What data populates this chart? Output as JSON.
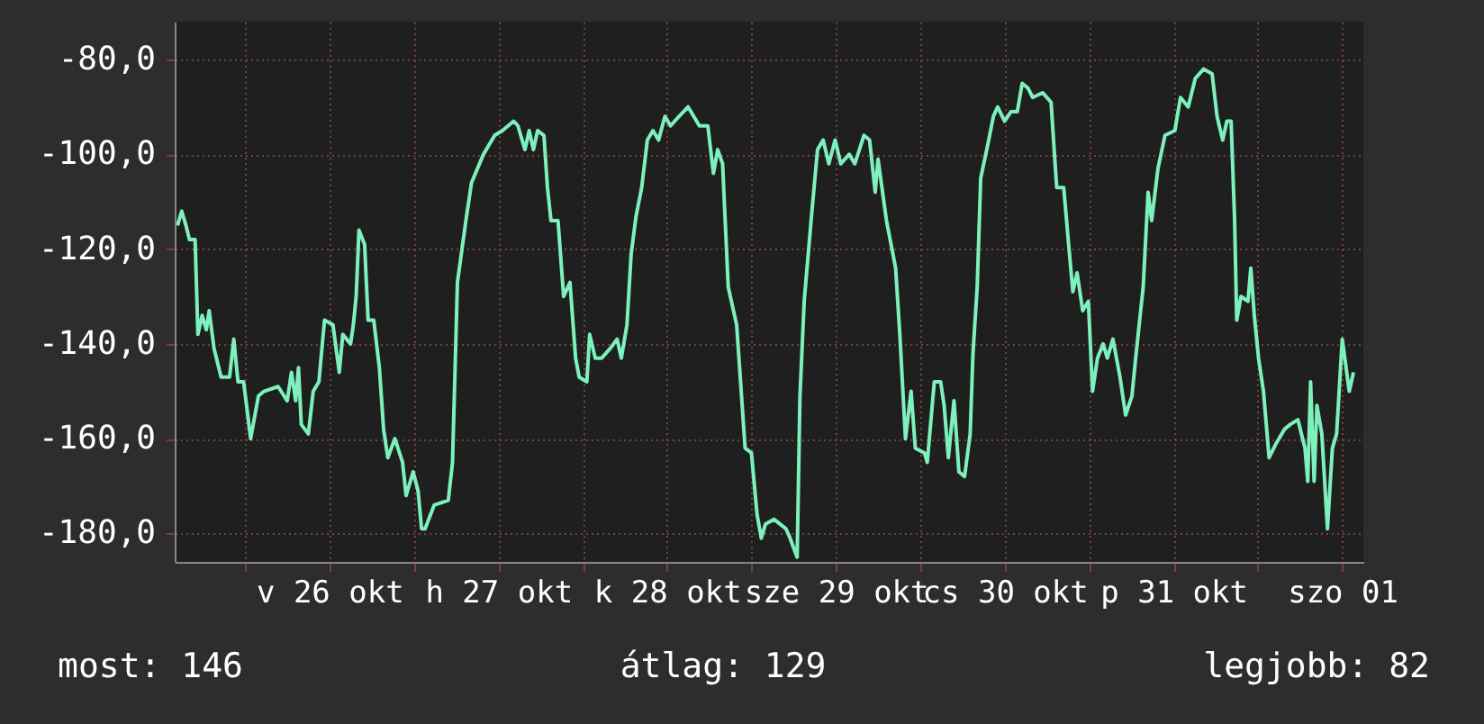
{
  "chart_data": {
    "type": "line",
    "x": [
      "--10-25T14:24",
      "--10-25T15:00",
      "--10-25T15:36",
      "--10-25T16:06",
      "--10-25T16:54",
      "--10-25T17:18",
      "--10-25T17:54",
      "--10-25T18:30",
      "--10-25T18:54",
      "--10-25T19:36",
      "--10-25T20:36",
      "--10-25T21:48",
      "--10-25T22:24",
      "--10-25T23:00",
      "--10-25T23:48",
      "--10-26T00:48",
      "--10-26T01:54",
      "--10-26T02:42",
      "--10-26T04:42",
      "--10-26T06:00",
      "--10-26T06:36",
      "--10-26T07:12",
      "--10-26T07:36",
      "--10-26T08:00",
      "--10-26T09:00",
      "--10-26T09:42",
      "--10-26T10:30",
      "--10-26T11:18",
      "--10-26T12:30",
      "--10-26T13:24",
      "--10-26T13:54",
      "--10-26T15:00",
      "--10-26T15:24",
      "--10-26T15:48",
      "--10-26T16:12",
      "--10-26T17:00",
      "--10-26T17:30",
      "--10-26T18:18",
      "--10-26T19:06",
      "--10-26T19:42",
      "--10-26T20:18",
      "--10-26T21:18",
      "--10-26T22:24",
      "--10-26T22:54",
      "--10-26T23:54",
      "--10-27T00:36",
      "--10-27T01:06",
      "--10-27T01:36",
      "--10-27T02:54",
      "--10-27T04:54",
      "--10-27T05:30",
      "--10-27T06:12",
      "--10-27T07:24",
      "--10-27T08:12",
      "--10-27T09:54",
      "--10-27T11:30",
      "--10-27T12:36",
      "--10-27T14:12",
      "--10-27T14:48",
      "--10-27T15:48",
      "--10-27T16:24",
      "--10-27T17:00",
      "--10-27T17:36",
      "--10-27T18:30",
      "--10-27T19:00",
      "--10-27T19:30",
      "--10-27T20:30",
      "--10-27T21:18",
      "--10-27T22:12",
      "--10-27T23:00",
      "--10-27T23:30",
      "--10-28T00:36",
      "--10-28T01:00",
      "--10-28T01:48",
      "--10-28T02:42",
      "--10-28T03:54",
      "--10-28T04:54",
      "--10-28T05:30",
      "--10-28T06:18",
      "--10-28T06:54",
      "--10-28T07:36",
      "--10-28T08:24",
      "--10-28T09:12",
      "--10-28T10:00",
      "--10-28T10:48",
      "--10-28T11:42",
      "--10-28T12:30",
      "--10-28T13:42",
      "--10-28T15:00",
      "--10-28T16:36",
      "--10-28T17:48",
      "--10-28T18:36",
      "--10-28T19:12",
      "--10-28T19:54",
      "--10-28T20:42",
      "--10-28T21:54",
      "--10-28T23:06",
      "--10-29T00:00",
      "--10-29T00:48",
      "--10-29T01:24",
      "--10-29T02:00",
      "--10-29T03:12",
      "--10-29T04:54",
      "--10-29T05:30",
      "--10-29T06:30",
      "--10-29T06:54",
      "--10-29T07:30",
      "--10-29T08:36",
      "--10-29T09:24",
      "--10-29T10:12",
      "--10-29T11:00",
      "--10-29T11:54",
      "--10-29T12:42",
      "--10-29T13:54",
      "--10-29T14:42",
      "--10-29T16:00",
      "--10-29T16:48",
      "--10-29T17:36",
      "--10-29T18:00",
      "--10-29T19:12",
      "--10-29T20:30",
      "--10-29T21:06",
      "--10-29T21:54",
      "--10-29T22:42",
      "--10-29T23:18",
      "--10-30T00:36",
      "--10-30T01:00",
      "--10-30T02:00",
      "--10-30T02:54",
      "--10-30T03:24",
      "--10-30T04:00",
      "--10-30T04:48",
      "--10-30T05:30",
      "--10-30T06:18",
      "--10-30T07:06",
      "--10-30T07:30",
      "--10-30T08:06",
      "--10-30T08:36",
      "--10-30T09:36",
      "--10-30T10:24",
      "--10-30T11:00",
      "--10-30T12:00",
      "--10-30T12:54",
      "--10-30T13:48",
      "--10-30T14:30",
      "--10-30T15:18",
      "--10-30T16:00",
      "--10-30T17:24",
      "--10-30T18:36",
      "--10-30T19:24",
      "--10-30T20:24",
      "--10-30T21:06",
      "--10-30T21:42",
      "--10-30T22:18",
      "--10-30T23:06",
      "--10-30T23:54",
      "--10-31T00:30",
      "--10-31T01:12",
      "--10-31T02:00",
      "--10-31T02:36",
      "--10-31T03:24",
      "--10-31T04:24",
      "--10-31T05:12",
      "--10-31T06:06",
      "--10-31T06:42",
      "--10-31T07:42",
      "--10-31T08:24",
      "--10-31T08:54",
      "--10-31T09:48",
      "--10-31T10:48",
      "--10-31T12:12",
      "--10-31T13:00",
      "--10-31T14:06",
      "--10-31T15:06",
      "--10-31T16:18",
      "--10-31T17:30",
      "--10-31T18:12",
      "--10-31T19:00",
      "--10-31T19:36",
      "--10-31T20:12",
      "--10-31T20:42",
      "--10-31T21:00",
      "--10-31T21:36",
      "--10-31T22:36",
      "--10-31T23:00",
      "--10-31T23:30",
      "--11-01T00:06",
      "--11-01T00:48",
      "--11-01T01:36",
      "--11-01T02:36",
      "--11-01T03:48",
      "--11-01T04:36",
      "--11-01T05:42",
      "--11-01T06:42",
      "--11-01T07:06",
      "--11-01T07:30",
      "--11-01T08:00",
      "--11-01T08:24",
      "--11-01T09:06",
      "--11-01T09:54",
      "--11-01T10:36",
      "--11-01T11:12",
      "--11-01T12:00",
      "--11-01T13:00",
      "--11-01T13:36"
    ],
    "series": [
      {
        "color": "#7df0bc",
        "values": [
          -115,
          -112,
          -115,
          -118,
          -118,
          -138,
          -134,
          -137,
          -133,
          -141,
          -147,
          -147,
          -139,
          -148,
          -148,
          -160,
          -151,
          -150,
          -149,
          -152,
          -146,
          -152,
          -145,
          -157,
          -159,
          -150,
          -148,
          -135,
          -136,
          -146,
          -138,
          -140,
          -136,
          -130,
          -116,
          -119,
          -135,
          -135,
          -145,
          -158,
          -164,
          -160,
          -165,
          -172,
          -167,
          -171,
          -179,
          -179,
          -174,
          -173,
          -165,
          -127,
          -114,
          -106,
          -100,
          -96,
          -95,
          -93,
          -94,
          -99,
          -95,
          -99,
          -95,
          -96,
          -107,
          -114,
          -114,
          -130,
          -127,
          -143,
          -147,
          -148,
          -138,
          -143,
          -143,
          -141,
          -139,
          -143,
          -136,
          -121,
          -113,
          -107,
          -97,
          -95,
          -97,
          -92,
          -94,
          -92,
          -90,
          -94,
          -94,
          -104,
          -99,
          -102,
          -128,
          -136,
          -162,
          -163,
          -176,
          -181,
          -178,
          -177,
          -179,
          -181,
          -185,
          -151,
          -131,
          -112,
          -99,
          -97,
          -102,
          -97,
          -102,
          -100,
          -102,
          -96,
          -97,
          -108,
          -101,
          -114,
          -124,
          -138,
          -160,
          -150,
          -162,
          -163,
          -165,
          -148,
          -148,
          -153,
          -164,
          -152,
          -167,
          -168,
          -159,
          -142,
          -128,
          -105,
          -98,
          -92,
          -90,
          -93,
          -91,
          -91,
          -85,
          -86,
          -88,
          -87,
          -89,
          -107,
          -107,
          -119,
          -129,
          -125,
          -133,
          -131,
          -150,
          -143,
          -140,
          -143,
          -139,
          -147,
          -155,
          -151,
          -142,
          -128,
          -108,
          -114,
          -103,
          -96,
          -95,
          -88,
          -90,
          -84,
          -82,
          -83,
          -92,
          -97,
          -93,
          -93,
          -114,
          -135,
          -130,
          -131,
          -124,
          -134,
          -143,
          -150,
          -164,
          -161,
          -158,
          -157,
          -156,
          -162,
          -169,
          -148,
          -169,
          -153,
          -159,
          -179,
          -162,
          -159,
          -139,
          -150,
          -146
        ]
      }
    ],
    "xlim": [
      "--10-25T14:00",
      "--11-01T15:00"
    ],
    "ylim": [
      -186,
      -72
    ],
    "xticks": [
      {
        "value": "--10-26T00:00",
        "label": null
      },
      {
        "value": "--10-26T12:00",
        "label": "v 26 okt"
      },
      {
        "value": "--10-27T00:00",
        "label": null
      },
      {
        "value": "--10-27T12:00",
        "label": "h 27 okt"
      },
      {
        "value": "--10-28T00:00",
        "label": null
      },
      {
        "value": "--10-28T12:00",
        "label": "k 28 okt"
      },
      {
        "value": "--10-29T00:00",
        "label": null
      },
      {
        "value": "--10-29T12:00",
        "label": "sze 29 okt"
      },
      {
        "value": "--10-30T00:00",
        "label": null
      },
      {
        "value": "--10-30T12:00",
        "label": "cs 30 okt"
      },
      {
        "value": "--10-31T00:00",
        "label": null
      },
      {
        "value": "--10-31T12:00",
        "label": "p 31 okt"
      },
      {
        "value": "--11-01T00:00",
        "label": null
      },
      {
        "value": "--11-01T12:00",
        "label": "szo 01"
      }
    ],
    "yticks": [
      {
        "value": -80,
        "label": "-80,0"
      },
      {
        "value": -100,
        "label": "-100,0"
      },
      {
        "value": -120,
        "label": "-120,0"
      },
      {
        "value": -140,
        "label": "-140,0"
      },
      {
        "value": -160,
        "label": "-160,0"
      },
      {
        "value": -180,
        "label": "-180,0"
      }
    ],
    "grid": true,
    "annotations": [
      "most: 146",
      "átlag: 129",
      "legjobb: 82"
    ]
  }
}
